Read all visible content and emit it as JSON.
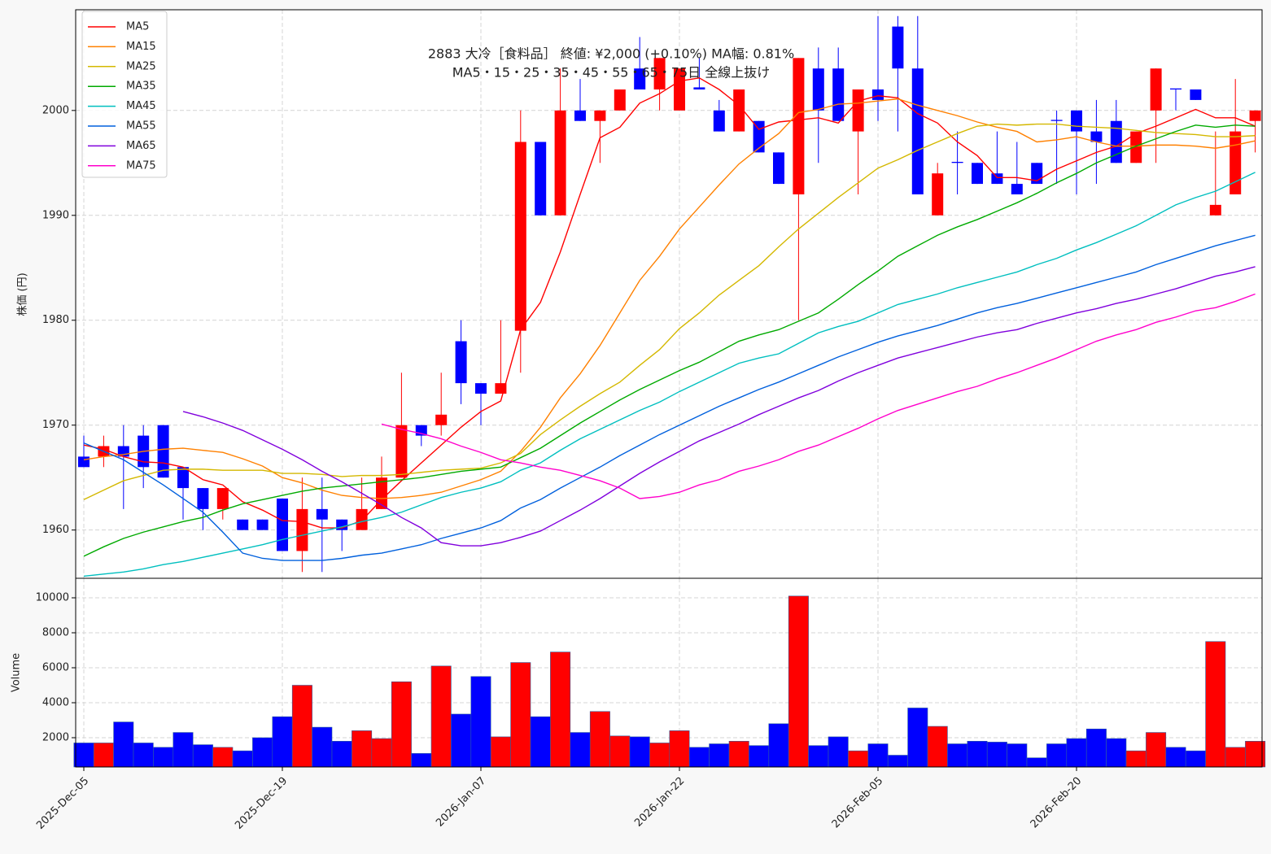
{
  "chart_data": [
    {
      "type": "candlestick",
      "title": "2883  大冷［食料品］ 終値: ¥2,000 (+0.10%)  MA幅: 0.81%",
      "subtitle": "MA5・15・25・35・45・55・65・75日 全線上抜け",
      "ylabel": "株価 (円)",
      "up_color": "#ff0000",
      "down_color": "#0000ff",
      "open": [
        1967,
        1967,
        1968,
        1969,
        1970,
        1966,
        1964,
        1962,
        1961,
        1961,
        1963,
        1958,
        1962,
        1961,
        1960,
        1962,
        1965,
        1970,
        1970,
        1978,
        1974,
        1973,
        1979,
        1997,
        1990,
        2000,
        1999,
        2000,
        2004,
        2002,
        2000,
        2002.2,
        2000,
        1998,
        1999,
        1996,
        1992,
        2004,
        2004,
        1998,
        2002,
        2008,
        2004,
        1990,
        1995.1,
        1995,
        1994,
        1993,
        1995,
        1999.1,
        2000,
        1998,
        1999,
        1995,
        2000,
        2002.1,
        2002,
        1990,
        1992,
        1999
      ],
      "high": [
        1969,
        1969,
        1970,
        1970,
        1970,
        1966,
        1964,
        1964,
        1961,
        1961,
        1963,
        1965,
        1965,
        1961,
        1965,
        1967,
        1975,
        1970,
        1975,
        1980,
        1974,
        1980,
        2000,
        1997,
        2004,
        2003,
        2000,
        2002,
        2007,
        2005,
        2004,
        2005,
        2001,
        2002,
        1999,
        1996,
        2005,
        2006,
        2006,
        2002,
        2009,
        2009,
        2009,
        1995,
        1998,
        1995,
        1998,
        1997,
        1995,
        2000,
        2000,
        2001,
        2001,
        1998,
        2004,
        2002,
        2002,
        1998,
        2003,
        2000
      ],
      "low": [
        1966,
        1966,
        1962,
        1964,
        1965,
        1961,
        1960,
        1961,
        1960,
        1960,
        1958,
        1956,
        1956,
        1958,
        1960,
        1962,
        1965,
        1968,
        1969,
        1972,
        1970,
        1973,
        1975,
        1990,
        1990,
        1999,
        1995,
        2000,
        2002,
        2000,
        2000,
        2002,
        1998,
        1998,
        1996,
        1993,
        1980,
        1995,
        1999,
        1992,
        1999,
        1998,
        1992,
        1990,
        1992,
        1993,
        1993,
        1992,
        1993,
        1993,
        1992,
        1993,
        1995,
        1995,
        1995,
        2000,
        2001,
        1990,
        1992,
        1996
      ],
      "close": [
        1966,
        1968,
        1967,
        1966,
        1965,
        1964,
        1962,
        1964,
        1960,
        1960,
        1958,
        1962,
        1961,
        1960,
        1962,
        1965,
        1970,
        1969,
        1971,
        1974,
        1973,
        1974,
        1997,
        1990,
        2000,
        1999,
        2000,
        2002,
        2002,
        2005,
        2004,
        2002,
        1998,
        2002,
        1996,
        1993,
        2005,
        2000,
        1999,
        2002,
        2001,
        2004,
        1992,
        1994,
        1995,
        1993,
        1993,
        1992,
        1993,
        1999,
        1998,
        1997,
        1995,
        1998,
        2004,
        2002,
        2001,
        1991,
        1998,
        2000
      ],
      "series": [
        {
          "name": "MA5",
          "color": "#ff0000",
          "values": [
            1968.1,
            1967.7,
            1967.0,
            1966.5,
            1966.4,
            1966.0,
            1964.8,
            1964.3,
            1962.7,
            1961.9,
            1960.9,
            1960.8,
            1960.2,
            1960.2,
            1960.9,
            1962.9,
            1964.7,
            1966.4,
            1968.1,
            1969.8,
            1971.3,
            1972.3,
            1979.1,
            1981.7,
            1986.5,
            1992.0,
            1997.4,
            1998.4,
            2000.7,
            2001.6,
            2002.8,
            2003.1,
            2002.0,
            2000.5,
            1998.2,
            1998.9,
            1999.1,
            1999.3,
            1998.8,
            2000.9,
            2001.4,
            2001.2,
            1999.7,
            1998.8,
            1997.0,
            1995.7,
            1993.6,
            1993.6,
            1993.3,
            1994.4,
            1995.2,
            1996.0,
            1996.6,
            1997.8,
            1998.5,
            1999.3,
            2000.1,
            1999.3,
            1999.3,
            1998.5
          ]
        },
        {
          "name": "MA15",
          "color": "#ff8000",
          "values": [
            1966.7,
            1967.0,
            1967.2,
            1967.5,
            1967.7,
            1967.8,
            1967.6,
            1967.4,
            1966.8,
            1966.1,
            1965.0,
            1964.5,
            1963.8,
            1963.3,
            1963.1,
            1963.0,
            1963.1,
            1963.3,
            1963.6,
            1964.2,
            1964.8,
            1965.6,
            1967.5,
            1969.8,
            1972.6,
            1974.9,
            1977.6,
            1980.7,
            1983.8,
            1986.1,
            1988.7,
            1990.8,
            1992.9,
            1994.9,
            1996.4,
            1997.8,
            1999.8,
            2000.1,
            2000.6,
            2000.7,
            2000.9,
            2001.1,
            2000.5,
            2000.0,
            1999.5,
            1998.9,
            1998.4,
            1998.0,
            1997.0,
            1997.2,
            1997.5,
            1997.0,
            1996.6,
            1996.6,
            1996.7,
            1996.7,
            1996.6,
            1996.4,
            1996.7,
            1997.1
          ]
        },
        {
          "name": "MA25",
          "color": "#d4b800",
          "values": [
            1962.9,
            1963.8,
            1964.7,
            1965.2,
            1965.7,
            1965.8,
            1965.8,
            1965.7,
            1965.7,
            1965.7,
            1965.4,
            1965.4,
            1965.3,
            1965.1,
            1965.2,
            1965.2,
            1965.3,
            1965.5,
            1965.7,
            1965.8,
            1965.9,
            1966.4,
            1967.3,
            1969.1,
            1970.5,
            1971.8,
            1973.0,
            1974.1,
            1975.7,
            1977.2,
            1979.2,
            1980.7,
            1982.4,
            1983.8,
            1985.2,
            1987.0,
            1988.7,
            1990.2,
            1991.7,
            1993.1,
            1994.5,
            1995.3,
            1996.2,
            1997.0,
            1997.8,
            1998.5,
            1998.7,
            1998.6,
            1998.7,
            1998.7,
            1998.5,
            1998.4,
            1998.3,
            1998.1,
            1997.9,
            1997.8,
            1997.7,
            1997.5,
            1997.5,
            1997.6
          ]
        },
        {
          "name": "MA35",
          "color": "#00aa00",
          "values": [
            1957.5,
            1958.4,
            1959.2,
            1959.8,
            1960.3,
            1960.8,
            1961.2,
            1961.9,
            1962.5,
            1962.9,
            1963.3,
            1963.7,
            1964.0,
            1964.2,
            1964.4,
            1964.6,
            1964.8,
            1965.0,
            1965.3,
            1965.6,
            1965.8,
            1966.0,
            1966.9,
            1967.8,
            1969.0,
            1970.2,
            1971.3,
            1972.4,
            1973.4,
            1974.3,
            1975.2,
            1976.0,
            1977.0,
            1978.0,
            1978.6,
            1979.1,
            1979.9,
            1980.7,
            1982.0,
            1983.4,
            1984.7,
            1986.1,
            1987.1,
            1988.1,
            1988.9,
            1989.6,
            1990.4,
            1991.2,
            1992.1,
            1993.1,
            1994.0,
            1995.0,
            1995.8,
            1996.6,
            1997.3,
            1998.0,
            1998.6,
            1998.4,
            1998.6,
            1998.5
          ]
        },
        {
          "name": "MA45",
          "color": "#00bfbf",
          "values": [
            1955.6,
            1955.8,
            1956.0,
            1956.3,
            1956.7,
            1957.0,
            1957.4,
            1957.8,
            1958.2,
            1958.6,
            1959.1,
            1959.5,
            1959.9,
            1960.3,
            1960.8,
            1961.2,
            1961.7,
            1962.4,
            1963.1,
            1963.6,
            1964.0,
            1964.6,
            1965.7,
            1966.4,
            1967.6,
            1968.7,
            1969.6,
            1970.5,
            1971.4,
            1972.2,
            1973.2,
            1974.1,
            1975.0,
            1975.9,
            1976.4,
            1976.8,
            1977.8,
            1978.8,
            1979.4,
            1979.9,
            1980.7,
            1981.5,
            1982.0,
            1982.5,
            1983.1,
            1983.6,
            1984.1,
            1984.6,
            1985.3,
            1985.9,
            1986.7,
            1987.4,
            1988.2,
            1989.0,
            1990.0,
            1991.0,
            1991.7,
            1992.3,
            1993.2,
            1994.1
          ]
        },
        {
          "name": "MA55",
          "color": "#0060dd",
          "values": [
            1968.3,
            1967.5,
            1966.7,
            1965.5,
            1964.3,
            1963.0,
            1961.7,
            1959.8,
            1957.8,
            1957.3,
            1957.1,
            1957.1,
            1957.1,
            1957.3,
            1957.6,
            1957.8,
            1958.2,
            1958.6,
            1959.2,
            1959.7,
            1960.2,
            1960.9,
            1962.1,
            1962.9,
            1964.0,
            1965.0,
            1966.0,
            1967.1,
            1968.1,
            1969.1,
            1970.0,
            1970.9,
            1971.8,
            1972.6,
            1973.4,
            1974.1,
            1974.9,
            1975.7,
            1976.5,
            1977.2,
            1977.9,
            1978.5,
            1979.0,
            1979.5,
            1980.1,
            1980.7,
            1981.2,
            1981.6,
            1982.1,
            1982.6,
            1983.1,
            1983.6,
            1984.1,
            1984.6,
            1985.3,
            1985.9,
            1986.5,
            1987.1,
            1987.6,
            1988.1
          ]
        },
        {
          "name": "MA65",
          "color": "#8000dd",
          "values": [
            null,
            null,
            null,
            null,
            null,
            1971.3,
            1970.8,
            1970.2,
            1969.5,
            1968.6,
            1967.7,
            1966.7,
            1965.6,
            1964.6,
            1963.5,
            1962.4,
            1961.2,
            1960.2,
            1958.8,
            1958.5,
            1958.5,
            1958.8,
            1959.3,
            1959.9,
            1960.9,
            1961.9,
            1963.0,
            1964.2,
            1965.4,
            1966.5,
            1967.5,
            1968.5,
            1969.3,
            1970.1,
            1971.0,
            1971.8,
            1972.6,
            1973.3,
            1974.2,
            1975.0,
            1975.7,
            1976.4,
            1976.9,
            1977.4,
            1977.9,
            1978.4,
            1978.8,
            1979.1,
            1979.7,
            1980.2,
            1980.7,
            1981.1,
            1981.6,
            1982.0,
            1982.5,
            1983.0,
            1983.6,
            1984.2,
            1984.6,
            1985.1
          ]
        },
        {
          "name": "MA75",
          "color": "#ff00cc",
          "values": [
            null,
            null,
            null,
            null,
            null,
            null,
            null,
            null,
            null,
            null,
            null,
            null,
            null,
            null,
            null,
            1970.1,
            1969.6,
            1969.2,
            1968.7,
            1968.0,
            1967.4,
            1966.7,
            1966.4,
            1966.0,
            1965.7,
            1965.2,
            1964.7,
            1964.0,
            1963.0,
            1963.2,
            1963.6,
            1964.3,
            1964.8,
            1965.6,
            1966.1,
            1966.7,
            1967.5,
            1968.1,
            1968.9,
            1969.7,
            1970.6,
            1971.4,
            1972.0,
            1972.6,
            1973.2,
            1973.7,
            1974.4,
            1975.0,
            1975.7,
            1976.4,
            1977.2,
            1978.0,
            1978.6,
            1979.1,
            1979.8,
            1980.3,
            1980.9,
            1981.2,
            1981.8,
            1982.5
          ]
        }
      ],
      "ylim": [
        1955.4,
        2009.6
      ],
      "yticks": [
        1960,
        1970,
        1980,
        1990,
        2000
      ],
      "grid": true,
      "legend": "upper left"
    },
    {
      "type": "bar",
      "ylabel": "Volume",
      "categories": [
        "2025-Dec-05",
        null,
        null,
        null,
        null,
        null,
        null,
        null,
        null,
        null,
        "2025-Dec-19",
        null,
        null,
        null,
        null,
        null,
        null,
        null,
        null,
        null,
        "2026-Jan-07",
        null,
        null,
        null,
        null,
        null,
        null,
        null,
        null,
        null,
        "2026-Jan-22",
        null,
        null,
        null,
        null,
        null,
        null,
        null,
        null,
        null,
        "2026-Feb-05",
        null,
        null,
        null,
        null,
        null,
        null,
        null,
        null,
        null,
        "2026-Feb-20",
        null,
        null,
        null,
        null,
        null,
        null,
        null,
        null,
        null
      ],
      "values": [
        1700,
        1700,
        2900,
        1700,
        1450,
        2300,
        1600,
        1450,
        1250,
        2000,
        3200,
        5000,
        2600,
        1800,
        2400,
        1950,
        5200,
        1100,
        6100,
        3350,
        5500,
        2050,
        6300,
        3200,
        6900,
        2300,
        3500,
        2100,
        2050,
        1700,
        2400,
        1450,
        1650,
        1800,
        1550,
        2800,
        10100,
        1550,
        2050,
        1250,
        1650,
        1000,
        3700,
        2650,
        1650,
        1800,
        1750,
        1650,
        850,
        1650,
        1950,
        2500,
        1950,
        1250,
        2300,
        1450,
        1250,
        7500,
        1450,
        1800
      ],
      "ylim": [
        326,
        11116
      ],
      "yticks": [
        2000,
        4000,
        6000,
        8000,
        10000
      ],
      "grid": true
    }
  ]
}
